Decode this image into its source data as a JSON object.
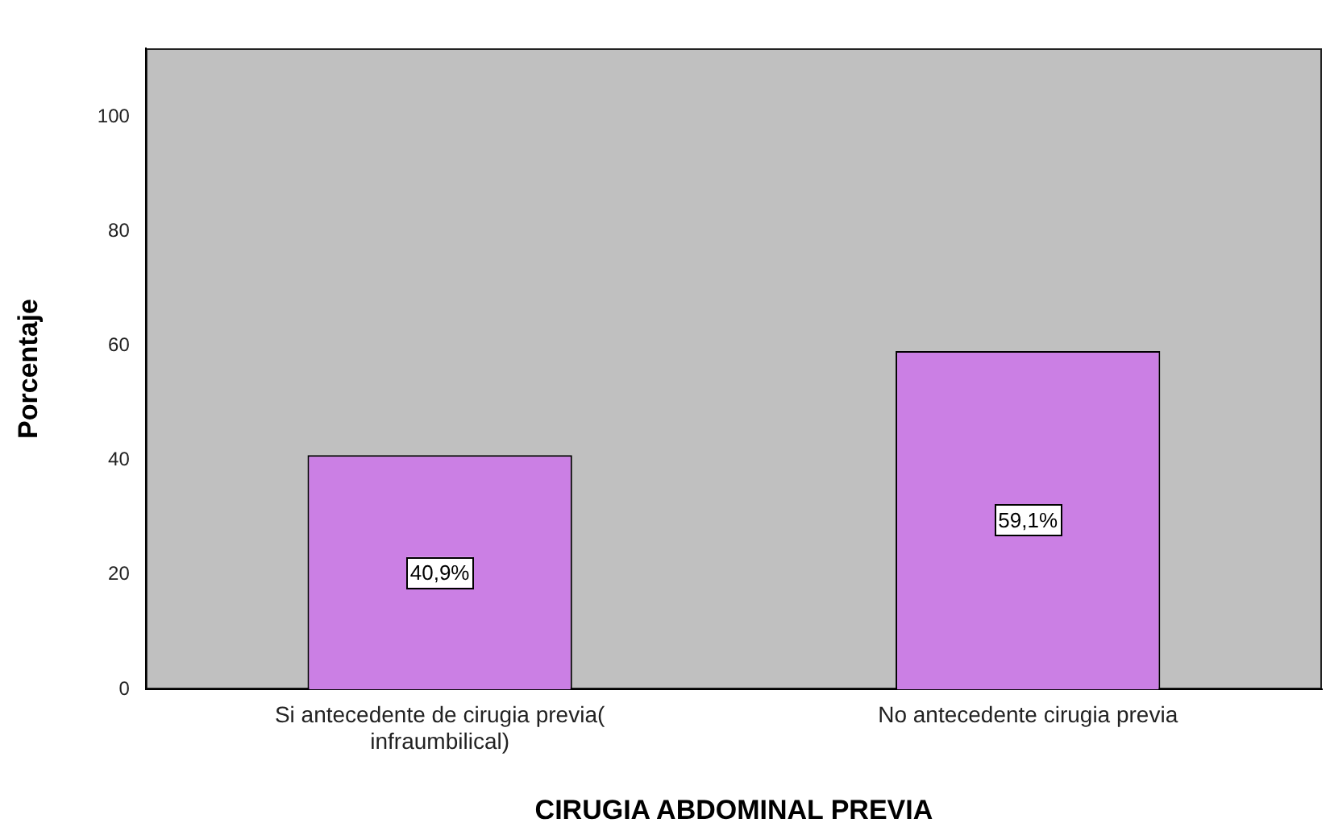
{
  "chart_data": {
    "type": "bar",
    "xlabel": "CIRUGIA ABDOMINAL PREVIA",
    "ylabel": "Porcentaje",
    "categories": [
      "Si antecedente de cirugia previa( infraumbilical)",
      "No antecedente cirugia previa"
    ],
    "values": [
      40.9,
      59.1
    ],
    "color": "#cb7fe4",
    "value_labels": [
      "40,9%",
      "59,1%"
    ],
    "ylim": [
      0,
      112
    ],
    "yticks": [
      0,
      20,
      40,
      60,
      80,
      100
    ],
    "grid": false
  }
}
